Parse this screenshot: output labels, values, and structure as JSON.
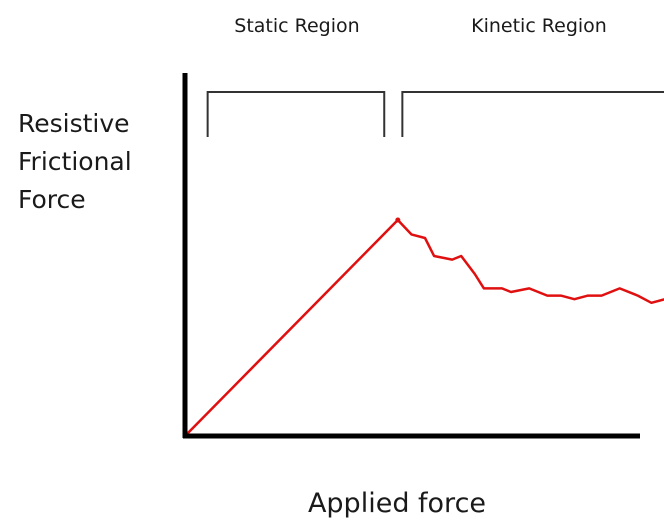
{
  "chart_data": {
    "type": "line",
    "title": "",
    "xlabel": "Applied force",
    "ylabel_lines": [
      "Resistive",
      "Frictional",
      "Force"
    ],
    "grid": false,
    "legend": "none",
    "regions": [
      {
        "label": "Static Region",
        "x_start": 0.05,
        "x_end": 0.44
      },
      {
        "label": "Kinetic Region",
        "x_start": 0.48,
        "x_end": 1.06
      }
    ],
    "series": [
      {
        "color": "#e01010",
        "x": [
          0,
          0.47,
          0.5,
          0.53,
          0.55,
          0.59,
          0.61,
          0.64,
          0.66,
          0.7,
          0.72,
          0.76,
          0.8,
          0.83,
          0.86,
          0.89,
          0.92,
          0.96,
          1.0,
          1.03,
          1.06
        ],
        "y": [
          0,
          0.6,
          0.56,
          0.55,
          0.5,
          0.49,
          0.5,
          0.45,
          0.41,
          0.41,
          0.4,
          0.41,
          0.39,
          0.39,
          0.38,
          0.39,
          0.39,
          0.41,
          0.39,
          0.37,
          0.38
        ]
      }
    ],
    "xlim": [
      0,
      1.06
    ],
    "ylim": [
      0,
      1
    ]
  }
}
